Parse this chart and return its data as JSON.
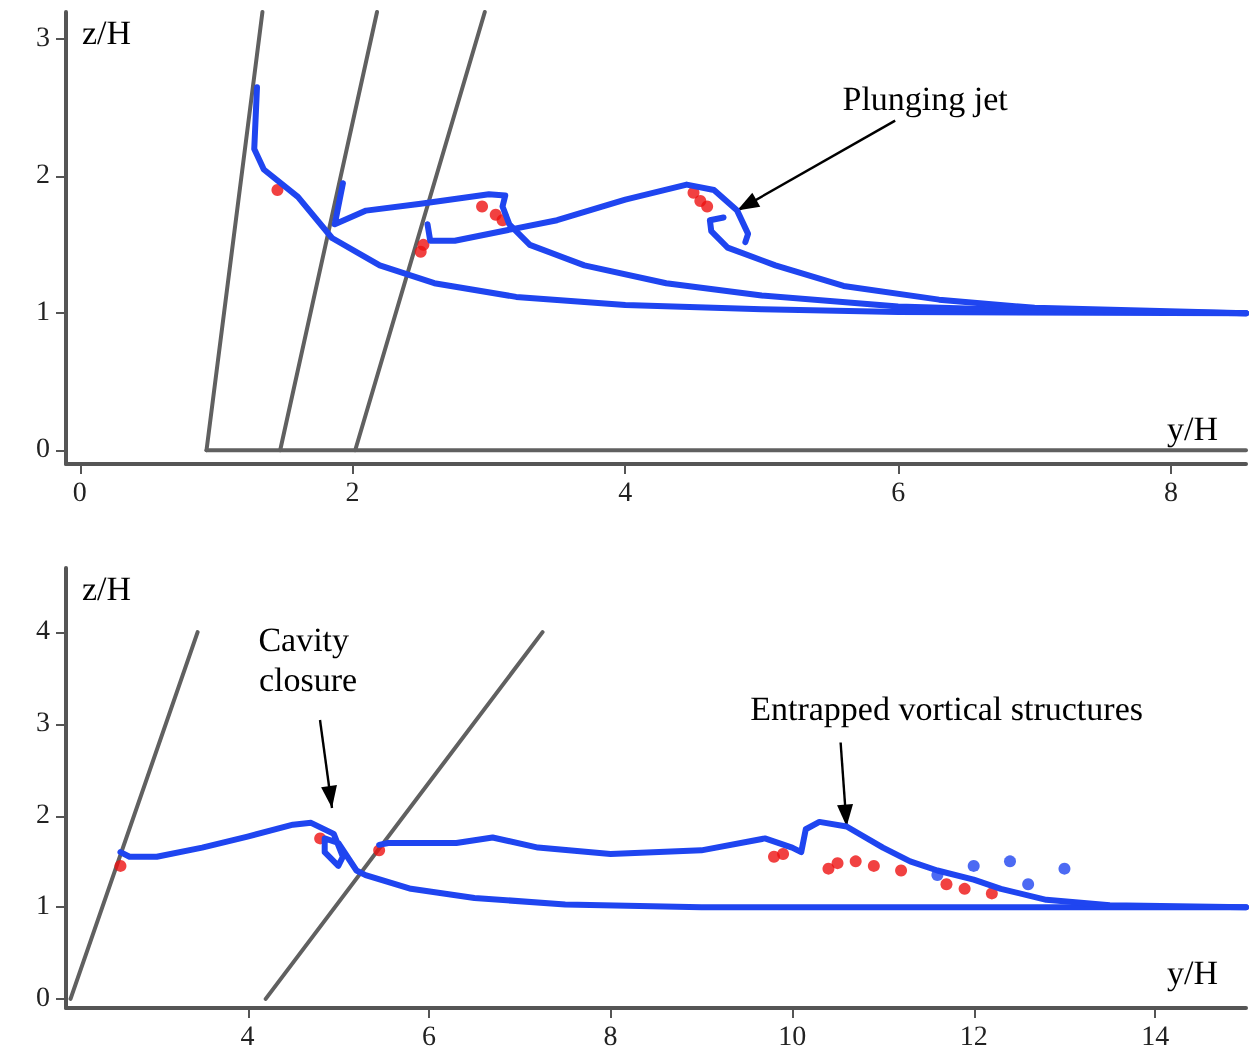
{
  "chart_data": [
    {
      "type": "line",
      "xlabel": "y/H",
      "ylabel": "z/H",
      "xlim": [
        -0.1,
        8.55
      ],
      "ylim": [
        -0.1,
        3.2
      ],
      "xticks": [
        0,
        2,
        4,
        6,
        8
      ],
      "yticks": [
        0,
        1,
        2,
        3
      ],
      "grid": false,
      "marker": "none",
      "line_style": "solid",
      "annotations": [
        {
          "text": "Plunging jet",
          "x": 4.82,
          "y": 1.75
        }
      ],
      "series": [
        {
          "color": "#606060",
          "x": [
            0.93,
            1.34
          ],
          "values": [
            0,
            3.2
          ]
        },
        {
          "color": "#606060",
          "x": [
            1.47,
            2.18
          ],
          "values": [
            0,
            3.2
          ]
        },
        {
          "color": "#606060",
          "x": [
            2.02,
            2.97
          ],
          "values": [
            0,
            3.2
          ]
        },
        {
          "color": "#606060",
          "x": [
            0.93,
            8.55
          ],
          "values": [
            0,
            0
          ]
        },
        {
          "type": "scatter",
          "marker": "circle",
          "color": "#ee1111",
          "x": [
            1.45,
            2.5,
            2.52,
            2.95,
            3.05,
            3.1,
            4.5,
            4.55,
            4.6
          ],
          "values": [
            1.9,
            1.45,
            1.5,
            1.78,
            1.72,
            1.68,
            1.88,
            1.82,
            1.78
          ]
        },
        {
          "color": "#1f45f0",
          "x": [
            1.3,
            1.28,
            1.35,
            1.6,
            1.85,
            2.2,
            2.6,
            3.2,
            4,
            5,
            6,
            8.55
          ],
          "values": [
            2.65,
            2.2,
            2.05,
            1.85,
            1.55,
            1.35,
            1.22,
            1.12,
            1.06,
            1.03,
            1.01,
            1.0
          ]
        },
        {
          "color": "#1f45f0",
          "x": [
            1.93,
            1.87,
            2.1,
            2.5,
            3.0,
            3.12,
            3.1,
            3.15,
            3.3,
            3.7,
            4.3,
            5,
            6,
            7,
            8.55
          ],
          "values": [
            1.95,
            1.65,
            1.75,
            1.8,
            1.87,
            1.86,
            1.78,
            1.65,
            1.5,
            1.35,
            1.22,
            1.13,
            1.05,
            1.02,
            1.0
          ]
        },
        {
          "color": "#1f45f0",
          "x": [
            2.55,
            2.57,
            2.75,
            3.5,
            4.0,
            4.45,
            4.65,
            4.82,
            4.9,
            4.88,
            null,
            4.72,
            4.62,
            4.63,
            4.75,
            5.1,
            5.6,
            6.3,
            7,
            8.55
          ],
          "values": [
            1.65,
            1.53,
            1.53,
            1.68,
            1.83,
            1.94,
            1.9,
            1.75,
            1.58,
            1.52,
            null,
            1.7,
            1.68,
            1.6,
            1.48,
            1.35,
            1.2,
            1.1,
            1.04,
            1.0
          ]
        }
      ]
    },
    {
      "type": "line",
      "xlabel": "y/H",
      "ylabel": "z/H",
      "xlim": [
        2.0,
        15.0
      ],
      "ylim": [
        -0.1,
        4.7
      ],
      "xticks": [
        4,
        6,
        8,
        10,
        12,
        14
      ],
      "yticks": [
        0,
        1,
        2,
        3,
        4
      ],
      "grid": false,
      "marker": "none",
      "line_style": "solid",
      "annotations": [
        "Cavity closure",
        {
          "text": "Entrapped vortical structures",
          "x": 10.6,
          "y": 1.88
        }
      ],
      "series": [
        {
          "color": "#606060",
          "x": [
            2.05,
            3.45
          ],
          "values": [
            0,
            4.0
          ]
        },
        {
          "color": "#606060",
          "x": [
            4.2,
            7.25
          ],
          "values": [
            0,
            4.0
          ]
        },
        {
          "type": "scatter",
          "marker": "circle",
          "color": "#ee1111",
          "x": [
            2.6,
            4.8,
            5.45,
            9.8,
            9.9,
            10.4,
            10.5,
            10.7,
            10.9,
            11.2,
            11.7,
            11.9,
            12.2
          ],
          "values": [
            1.45,
            1.75,
            1.62,
            1.55,
            1.58,
            1.42,
            1.48,
            1.5,
            1.45,
            1.4,
            1.25,
            1.2,
            1.15
          ]
        },
        {
          "type": "scatter",
          "marker": "circle",
          "color": "#1f45f0",
          "x": [
            11.6,
            12.0,
            12.4,
            13.0,
            12.6
          ],
          "values": [
            1.35,
            1.45,
            1.5,
            1.42,
            1.25
          ]
        },
        {
          "color": "#1f45f0",
          "x": [
            2.6,
            2.7,
            3.0,
            3.5,
            4.0,
            4.5,
            4.7,
            4.95,
            5.05,
            5.0,
            4.85,
            4.85,
            5.0,
            5.2,
            5.3,
            5.8,
            6.5,
            7.5,
            9,
            15
          ],
          "values": [
            1.6,
            1.55,
            1.55,
            1.65,
            1.77,
            1.9,
            1.92,
            1.8,
            1.55,
            1.45,
            1.6,
            1.75,
            1.7,
            1.4,
            1.35,
            1.2,
            1.1,
            1.03,
            1.0,
            1.0
          ]
        },
        {
          "color": "#1f45f0",
          "x": [
            5.45,
            5.55,
            6.3,
            6.7,
            7.2,
            8,
            9,
            9.7,
            10.0,
            10.1,
            10.15,
            10.3,
            10.6,
            11.0,
            11.3,
            11.6,
            12.0,
            12.3,
            12.8,
            13.5,
            15
          ],
          "values": [
            1.68,
            1.7,
            1.7,
            1.76,
            1.65,
            1.58,
            1.62,
            1.75,
            1.65,
            1.6,
            1.85,
            1.93,
            1.88,
            1.65,
            1.5,
            1.4,
            1.3,
            1.2,
            1.08,
            1.02,
            1.0
          ]
        }
      ]
    }
  ]
}
